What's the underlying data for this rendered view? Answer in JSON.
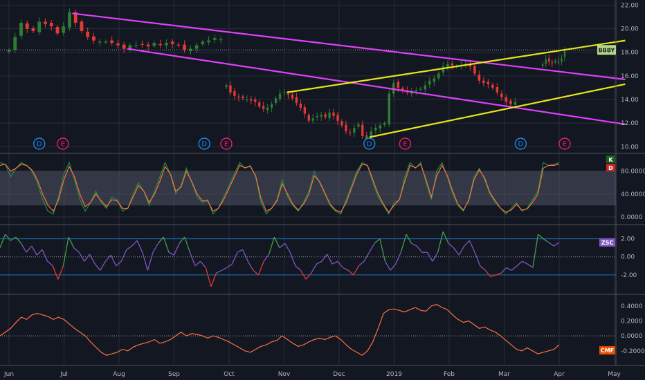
{
  "colors": {
    "background": "#131722",
    "grid": "#2a2e39",
    "axis_text": "#b2b5be",
    "up": "#2e7d32",
    "down": "#e53935",
    "magenta": "#e040fb",
    "yellow": "#e6e61a",
    "stoch_k": "#1e8e3e",
    "stoch_d": "#ff7043",
    "stoch_band": "#5d6070",
    "zsc": "#7e57c2",
    "zsc_up": "#43a047",
    "zsc_down": "#e53935",
    "cmf": "#ff7043",
    "event_ring": "#1e88e5",
    "earn_ring": "#e91e63"
  },
  "chart_data": [
    {
      "type": "candlestick",
      "symbol": "BBBY",
      "last_price_tag": "BBBY",
      "x_ticks": [
        "Jun",
        "Jul",
        "Aug",
        "Sep",
        "Oct",
        "Nov",
        "Dec",
        "2019",
        "Feb",
        "Mar",
        "Apr",
        "May"
      ],
      "y_ticks": [
        "22.00",
        "20.00",
        "18.00",
        "16.00",
        "14.00",
        "12.00",
        "10.00"
      ],
      "ylim": [
        9.9,
        22.2
      ],
      "series": [
        {
          "start_month": 0.0,
          "end_month": 3.85,
          "start_price": 18.2,
          "points": [
            18.2,
            19.3,
            20.5,
            20.0,
            19.8,
            20.6,
            20.4,
            20.2,
            19.6,
            20.2,
            21.4,
            20.5,
            19.8,
            19.3,
            19.0,
            18.9,
            18.9,
            18.8,
            18.6,
            18.3,
            18.6,
            18.6,
            18.7,
            18.5,
            18.8,
            18.6,
            18.8,
            18.7,
            18.6,
            18.2,
            18.3,
            18.6,
            18.9,
            19.0,
            19.2,
            19.1
          ]
        },
        {
          "start_month": 3.95,
          "end_month": 6.5,
          "start_price": 15.2,
          "points": [
            15.2,
            14.6,
            14.3,
            14.2,
            14.1,
            14.0,
            13.9,
            13.8,
            13.4,
            13.2,
            13.3,
            13.6,
            14.1,
            14.5,
            14.6,
            14.4,
            14.1,
            13.7,
            13.3,
            12.8,
            12.2,
            12.4,
            12.6,
            12.7,
            12.5,
            12.9,
            12.6,
            12.2,
            11.8,
            11.3,
            11.2,
            11.6,
            11.9,
            10.9,
            10.8
          ]
        },
        {
          "start_month": 6.5,
          "end_month": 9.2,
          "start_price": 10.8,
          "points": [
            10.8,
            11.3,
            11.6,
            11.8,
            12.0,
            14.5,
            15.4,
            15.0,
            14.7,
            14.6,
            14.7,
            14.8,
            14.9,
            15.2,
            15.6,
            15.8,
            16.2,
            16.8,
            17.0,
            16.9,
            16.8,
            16.9,
            17.0,
            16.8,
            16.2,
            15.6,
            15.4,
            15.3,
            15.0,
            14.6,
            14.2,
            13.8,
            13.6,
            13.8
          ]
        },
        {
          "start_month": 9.7,
          "end_month": 10.1,
          "start_price": 17.0,
          "points": [
            17.0,
            17.4,
            17.2,
            17.1,
            17.3,
            17.2,
            17.5,
            18.2
          ]
        }
      ],
      "trendlines": [
        {
          "color": "magenta",
          "from": [
            1.15,
            21.3
          ],
          "to": [
            11.2,
            15.7
          ]
        },
        {
          "color": "magenta",
          "from": [
            2.15,
            18.3
          ],
          "to": [
            11.2,
            11.9
          ]
        },
        {
          "color": "yellow",
          "from": [
            5.05,
            14.6
          ],
          "to": [
            11.2,
            19.0
          ]
        },
        {
          "color": "yellow",
          "from": [
            6.55,
            10.8
          ],
          "to": [
            11.2,
            15.3
          ]
        }
      ],
      "events": [
        {
          "label": "D",
          "month": 0.55,
          "kind": "dividend"
        },
        {
          "label": "E",
          "month": 0.98,
          "kind": "earnings"
        },
        {
          "label": "D",
          "month": 3.55,
          "kind": "dividend"
        },
        {
          "label": "E",
          "month": 3.95,
          "kind": "earnings"
        },
        {
          "label": "D",
          "month": 6.55,
          "kind": "dividend"
        },
        {
          "label": "E",
          "month": 7.2,
          "kind": "earnings"
        },
        {
          "label": "D",
          "month": 9.3,
          "kind": "dividend"
        },
        {
          "label": "E",
          "month": 10.1,
          "kind": "earnings"
        }
      ]
    },
    {
      "type": "line",
      "indicator": "Stochastic",
      "y_ticks": [
        "80.0000",
        "40.0000",
        "0.0000"
      ],
      "ylim": [
        -5,
        105
      ],
      "band": [
        20,
        80
      ],
      "tags": [
        "K",
        "D"
      ],
      "series": [
        {
          "name": "K",
          "values": [
            95,
            92,
            70,
            85,
            95,
            90,
            80,
            60,
            30,
            10,
            5,
            35,
            75,
            95,
            65,
            30,
            10,
            25,
            45,
            25,
            15,
            35,
            30,
            10,
            15,
            40,
            60,
            45,
            20,
            45,
            70,
            95,
            75,
            40,
            55,
            85,
            60,
            35,
            25,
            30,
            5,
            15,
            35,
            55,
            75,
            95,
            85,
            90,
            70,
            25,
            5,
            15,
            30,
            65,
            35,
            20,
            10,
            25,
            45,
            80,
            60,
            40,
            20,
            10,
            5,
            30,
            55,
            80,
            95,
            90,
            60,
            35,
            20,
            5,
            25,
            30,
            70,
            95,
            85,
            95,
            60,
            30,
            80,
            95,
            70,
            40,
            20,
            10,
            30,
            70,
            85,
            65,
            40,
            25,
            15,
            5,
            15,
            25,
            10,
            15,
            30,
            45,
            95,
            90,
            92,
            95
          ]
        },
        {
          "name": "D",
          "values": [
            90,
            92,
            80,
            85,
            92,
            90,
            82,
            65,
            40,
            20,
            10,
            30,
            65,
            88,
            70,
            40,
            18,
            25,
            40,
            28,
            18,
            30,
            28,
            15,
            15,
            35,
            55,
            45,
            25,
            40,
            62,
            88,
            75,
            45,
            52,
            80,
            62,
            40,
            28,
            28,
            10,
            15,
            30,
            50,
            70,
            90,
            86,
            88,
            72,
            32,
            10,
            15,
            28,
            58,
            40,
            22,
            12,
            22,
            40,
            72,
            62,
            42,
            22,
            12,
            8,
            25,
            50,
            75,
            92,
            90,
            65,
            40,
            22,
            8,
            20,
            30,
            62,
            90,
            86,
            92,
            65,
            35,
            72,
            90,
            72,
            45,
            22,
            12,
            28,
            65,
            82,
            68,
            42,
            28,
            15,
            8,
            12,
            22,
            12,
            14,
            25,
            40,
            85,
            90,
            90,
            92
          ]
        }
      ]
    },
    {
      "type": "line",
      "indicator": "ZSC",
      "tag": "ZSC",
      "y_ticks": [
        "2.00",
        "0.00",
        "-2.00"
      ],
      "ylim": [
        -3.7,
        3.2
      ],
      "levels": [
        2,
        0,
        -2
      ],
      "series": [
        {
          "name": "ZSC",
          "values": [
            1.0,
            2.5,
            1.8,
            2.2,
            1.5,
            0.5,
            1.2,
            0.2,
            0.8,
            -0.5,
            -1.0,
            -2.5,
            -1.0,
            2.2,
            1.0,
            0.5,
            -0.5,
            0.3,
            -0.8,
            -1.5,
            -0.5,
            0.2,
            -1.0,
            -0.5,
            0.8,
            1.2,
            1.8,
            0.5,
            -1.5,
            0.5,
            1.5,
            2.2,
            0.5,
            0.2,
            1.5,
            2.2,
            0.5,
            -1.0,
            -0.5,
            -1.2,
            -3.3,
            -1.8,
            -1.5,
            -1.2,
            -0.8,
            0.5,
            0.8,
            -0.5,
            -1.5,
            -2.0,
            -0.5,
            0.3,
            2.2,
            1.0,
            1.5,
            0.5,
            -1.0,
            -1.5,
            -2.5,
            -1.8,
            -0.8,
            -0.5,
            0.3,
            -0.8,
            -0.5,
            -1.2,
            -1.5,
            -2.0,
            -1.0,
            -0.5,
            0.5,
            1.5,
            2.0,
            -0.5,
            -1.5,
            -0.8,
            0.5,
            2.5,
            1.5,
            1.2,
            0.5,
            0.5,
            -0.5,
            0.5,
            2.8,
            1.5,
            1.0,
            0.2,
            1.2,
            1.8,
            0.5,
            -1.0,
            -1.5,
            -2.2,
            -2.0,
            -1.8,
            -1.2,
            -1.5,
            -1.0,
            -0.5,
            -0.8,
            -1.2,
            2.5,
            2.0,
            1.6,
            1.2,
            1.6
          ]
        }
      ]
    },
    {
      "type": "line",
      "indicator": "CMF",
      "tag": "CMF",
      "y_ticks": [
        "0.4000",
        "0.2000",
        "0.0000",
        "-0.2000"
      ],
      "ylim": [
        -0.35,
        0.5
      ],
      "levels": [
        0
      ],
      "series": [
        {
          "name": "CMF",
          "values": [
            0.0,
            0.05,
            0.1,
            0.18,
            0.25,
            0.22,
            0.28,
            0.3,
            0.28,
            0.26,
            0.22,
            0.25,
            0.22,
            0.16,
            0.1,
            0.05,
            0.0,
            -0.08,
            -0.15,
            -0.22,
            -0.26,
            -0.24,
            -0.22,
            -0.18,
            -0.2,
            -0.15,
            -0.12,
            -0.1,
            -0.08,
            -0.05,
            -0.1,
            -0.08,
            -0.05,
            0.0,
            0.05,
            0.0,
            0.03,
            0.02,
            0.0,
            -0.03,
            0.0,
            -0.02,
            -0.05,
            -0.08,
            -0.12,
            -0.16,
            -0.2,
            -0.22,
            -0.18,
            -0.14,
            -0.12,
            -0.08,
            -0.06,
            0.0,
            -0.05,
            -0.1,
            -0.14,
            -0.12,
            -0.08,
            -0.05,
            -0.03,
            -0.05,
            -0.02,
            0.0,
            -0.05,
            -0.12,
            -0.18,
            -0.22,
            -0.26,
            -0.2,
            -0.08,
            0.1,
            0.3,
            0.35,
            0.36,
            0.34,
            0.32,
            0.35,
            0.38,
            0.34,
            0.33,
            0.4,
            0.42,
            0.38,
            0.35,
            0.28,
            0.22,
            0.18,
            0.2,
            0.15,
            0.1,
            0.12,
            0.08,
            0.05,
            0.0,
            -0.06,
            -0.12,
            -0.18,
            -0.2,
            -0.16,
            -0.2,
            -0.24,
            -0.22,
            -0.2,
            -0.18,
            -0.12
          ]
        }
      ]
    }
  ]
}
